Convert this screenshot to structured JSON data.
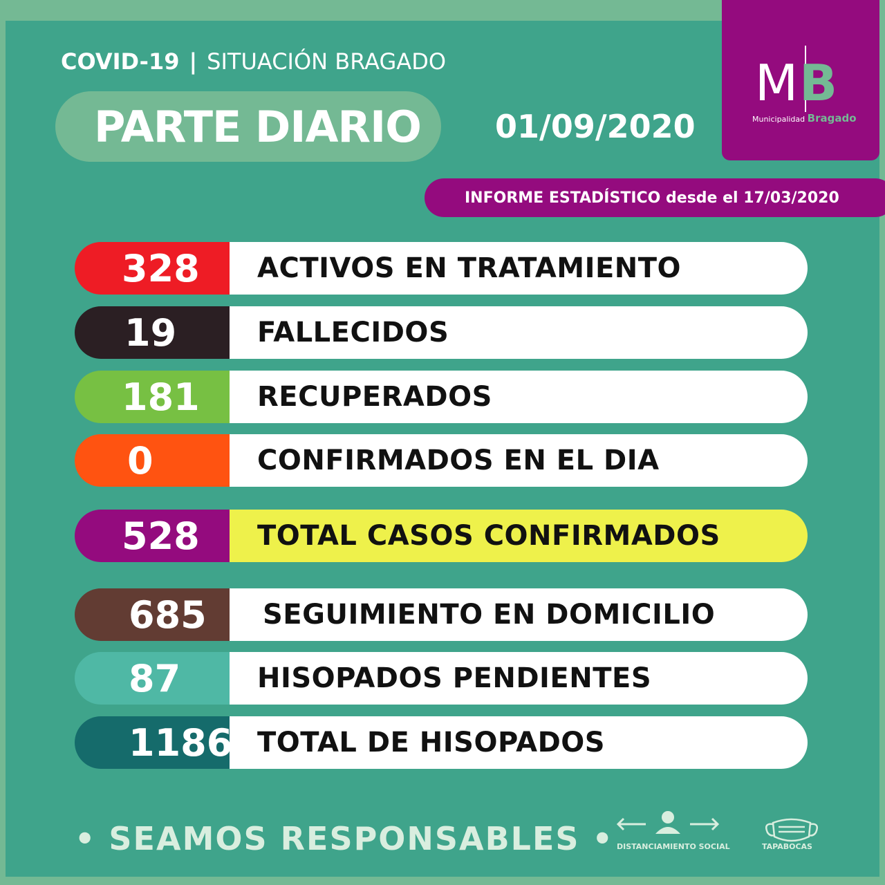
{
  "header": {
    "covid": "COVID-19",
    "separator": "|",
    "situacion": "SITUACIÓN BRAGADO",
    "parte": "PARTE DIARIO",
    "date": "01/09/2020"
  },
  "logo": {
    "mb_m": "M",
    "mb_b": "B",
    "municipalidad": "Municipalidad",
    "bragado": "Bragado"
  },
  "informe": "INFORME ESTADÍSTICO desde el 17/03/2020",
  "stats": [
    {
      "value": "328",
      "label": "ACTIVOS EN TRATAMIENTO",
      "color": "#ee1c25"
    },
    {
      "value": "19",
      "label": "FALLECIDOS",
      "color": "#2b1f23"
    },
    {
      "value": "181",
      "label": "RECUPERADOS",
      "color": "#77c043"
    },
    {
      "value": "0",
      "label": "CONFIRMADOS EN EL DIA",
      "color": "#ff5311"
    },
    {
      "value": "528",
      "label": "TOTAL CASOS CONFIRMADOS",
      "color": "#940b7e",
      "highlight": "#eef14b"
    },
    {
      "value": "685",
      "label": "SEGUIMIENTO EN DOMICILIO",
      "color": "#623c33"
    },
    {
      "value": "87",
      "label": "HISOPADOS PENDIENTES",
      "color": "#4fb8a5"
    },
    {
      "value": "1186",
      "label": "TOTAL DE HISOPADOS",
      "color": "#156b6b"
    }
  ],
  "footer": {
    "slogan": "• SEAMOS RESPONSABLES •",
    "distanciamiento": "DISTANCIAMIENTO SOCIAL",
    "tapabocas": "TAPABOCAS"
  }
}
